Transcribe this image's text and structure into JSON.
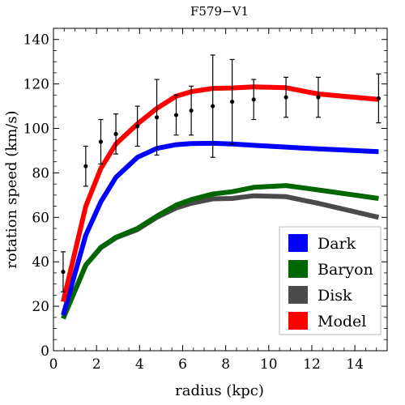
{
  "chart_data": {
    "type": "line",
    "title": "F579−V1",
    "xlabel": "radius (kpc)",
    "ylabel": "rotation speed (km/s)",
    "xlim": [
      0,
      15.5
    ],
    "ylim": [
      0,
      145
    ],
    "xticks": [
      0,
      2,
      4,
      6,
      8,
      10,
      12,
      14
    ],
    "yticks": [
      0,
      20,
      40,
      60,
      80,
      100,
      120,
      140
    ],
    "grid": false,
    "legend_position": "bottom-right",
    "series": [
      {
        "name": "Dark",
        "color": "#0000ff",
        "x": [
          0.45,
          1.5,
          2.2,
          2.9,
          3.9,
          4.8,
          5.7,
          6.4,
          7.4,
          8.3,
          9.3,
          10.8,
          12.3,
          15.1
        ],
        "y": [
          16,
          52,
          67,
          78,
          87,
          91,
          92.7,
          93.2,
          93.3,
          93,
          92.4,
          91.6,
          90.8,
          89.5
        ]
      },
      {
        "name": "Baryon",
        "color": "#006600",
        "x": [
          0.45,
          1.5,
          2.2,
          2.9,
          3.9,
          4.8,
          5.7,
          6.4,
          7.4,
          8.3,
          9.3,
          10.8,
          12.3,
          15.1
        ],
        "y": [
          14.5,
          38.5,
          46.5,
          51,
          55,
          60.5,
          65.5,
          68,
          70.5,
          71.5,
          73.5,
          74.3,
          72.3,
          68.5
        ]
      },
      {
        "name": "Disk",
        "color": "#4a4a4a",
        "x": [
          0.45,
          1.5,
          2.2,
          2.9,
          3.9,
          4.8,
          5.7,
          6.4,
          7.4,
          8.3,
          9.3,
          10.8,
          12.3,
          15.1
        ],
        "y": [
          14.5,
          38.5,
          46.3,
          50.8,
          54.5,
          60,
          64.2,
          66.3,
          68.3,
          68.5,
          69.7,
          69.3,
          66.3,
          60
        ]
      },
      {
        "name": "Model",
        "color": "#ff0000",
        "x": [
          0.45,
          1.5,
          2.2,
          2.9,
          3.9,
          4.8,
          5.7,
          6.4,
          7.4,
          8.3,
          9.3,
          10.8,
          12.3,
          15.1
        ],
        "y": [
          22,
          65,
          82,
          93,
          102,
          109,
          114.5,
          116.5,
          118,
          118.2,
          118.7,
          118.3,
          115.5,
          113
        ]
      }
    ],
    "observations": {
      "x": [
        0.45,
        1.5,
        2.2,
        2.9,
        3.9,
        4.8,
        5.7,
        6.4,
        7.4,
        8.3,
        9.3,
        10.8,
        12.3,
        15.1
      ],
      "y": [
        35.5,
        83,
        94,
        97.5,
        101,
        105,
        106,
        108,
        110,
        112,
        113,
        114,
        114,
        113.5
      ],
      "yerr": [
        9,
        9,
        10,
        9,
        9,
        17,
        9,
        11,
        23,
        19,
        9,
        9,
        9,
        11
      ]
    }
  }
}
